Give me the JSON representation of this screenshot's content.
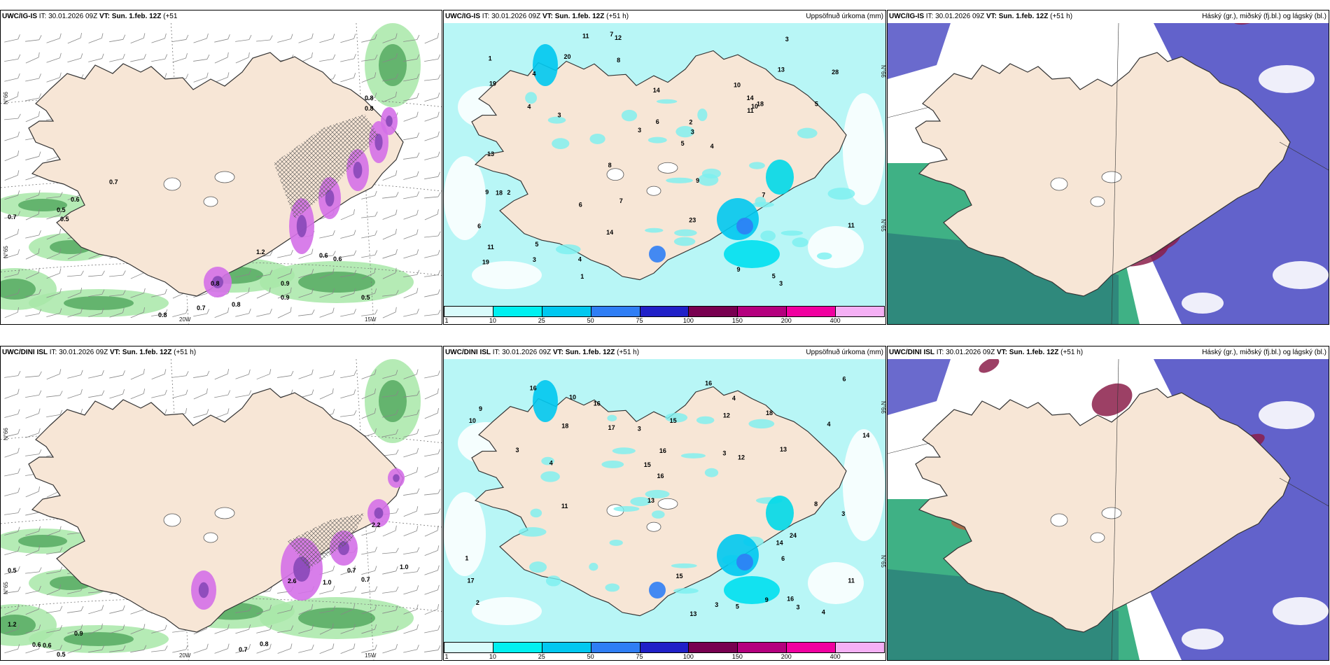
{
  "panels": [
    {
      "id": "p1",
      "title_model": "UWC/IG-IS",
      "title_it": "IT: 30.01.2026 09Z",
      "title_vt": "VT: Sun. 1.feb. 12Z",
      "title_lead": "(+51",
      "title_lead2": "h)",
      "right_title": "",
      "kind": "wind",
      "labels": [
        "0.8",
        "0.8",
        "0.7",
        "0.6",
        "0.7",
        "0.5",
        "0.5",
        "0.8",
        "0.9",
        "0.6",
        "0.6",
        "0.5",
        "0.8",
        "0.7",
        "0.8",
        "0.9",
        "1.2"
      ],
      "coords": [
        "N°66",
        "N°65",
        "20W",
        "15W"
      ]
    },
    {
      "id": "p2",
      "title_model": "UWC/IG-IS",
      "title_it": "IT: 30.01.2026 09Z",
      "title_vt": "VT: Sun. 1.feb. 12Z",
      "title_lead": "(+51 h)",
      "right_title": "Uppsöfnuð úrkoma (mm)",
      "kind": "precip",
      "labels": [
        "1",
        "5",
        "5",
        "4",
        "5",
        "3",
        "4",
        "7",
        "3",
        "14",
        "10",
        "28",
        "3",
        "2",
        "3",
        "3",
        "1",
        "2",
        "3",
        "9",
        "5",
        "6",
        "4",
        "9",
        "10",
        "13",
        "14",
        "11",
        "14",
        "18",
        "18",
        "12",
        "20",
        "13",
        "4",
        "11",
        "19",
        "19",
        "23",
        "11",
        "8",
        "8",
        "7",
        "6",
        "6",
        "7",
        "9",
        "11"
      ],
      "coords": [
        "N°66",
        "N°65"
      ]
    },
    {
      "id": "p3",
      "title_model": "UWC/IG-IS",
      "title_it": "IT: 30.01.2026 09Z",
      "title_vt": "VT: Sun. 1.feb. 12Z",
      "title_lead": "(+51 h)",
      "right_title": "Háský (gr.), miðský (fj.bl.) og lágský (bl.)",
      "kind": "cloud",
      "labels": [],
      "coords": []
    },
    {
      "id": "p4",
      "title_model": "UWC/DINI ISL",
      "title_it": "IT: 30.01.2026 09Z",
      "title_vt": "VT: Sun. 1.feb. 12Z",
      "title_lead": "(+51 h)",
      "right_title": "",
      "kind": "wind",
      "labels": [
        "0.5",
        "1.2",
        "0.9",
        "0.6",
        "0.6",
        "0.5",
        "0.7",
        "0.8",
        "0.7",
        "1.0",
        "0.7",
        "1.0",
        "2.6",
        "2.2"
      ],
      "coords": [
        "N°66",
        "N°65",
        "20W",
        "15W"
      ]
    },
    {
      "id": "p5",
      "title_model": "UWC/DINI ISL",
      "title_it": "IT: 30.01.2026 09Z",
      "title_vt": "VT: Sun. 1.feb. 12Z",
      "title_lead": "(+51 h)",
      "right_title": "Uppsöfnuð úrkoma (mm)",
      "kind": "precip",
      "labels": [
        "3",
        "4",
        "3",
        "3",
        "3",
        "16",
        "15",
        "18",
        "4",
        "4",
        "4",
        "16",
        "11",
        "1",
        "5",
        "6",
        "3",
        "9",
        "10",
        "17",
        "12",
        "16",
        "17",
        "13",
        "18",
        "15",
        "16",
        "13",
        "14",
        "10",
        "8",
        "11",
        "24",
        "16",
        "12",
        "13",
        "14",
        "15",
        "16",
        "2",
        "6",
        "9",
        "3"
      ],
      "coords": [
        "N°66",
        "N°65"
      ]
    },
    {
      "id": "p6",
      "title_model": "UWC/DINI ISL",
      "title_it": "IT: 30.01.2026 09Z",
      "title_vt": "VT: Sun. 1.feb. 12Z",
      "title_lead": "(+51 h)",
      "right_title": "Háský (gr.), miðský (fj.bl.) og lágský (bl.)",
      "kind": "cloud",
      "labels": [],
      "coords": []
    }
  ],
  "colorbar": {
    "ticks": [
      "1",
      "10",
      "25",
      "50",
      "75",
      "100",
      "150",
      "200",
      "400"
    ],
    "colors": [
      "#d9fbfb",
      "#00f0f0",
      "#00c8f0",
      "#2f7ef5",
      "#2020c8",
      "#780050",
      "#b4007e",
      "#f000a0",
      "#f5b0f5"
    ]
  },
  "colors": {
    "land": "#f7e6d6",
    "sea_precip": "#b8f6f6",
    "wind_purple": "#d470e8",
    "wind_green": "#a8e8a8",
    "cloud_blue": "#5a5ac8",
    "cloud_red": "#8b1e4a",
    "cloud_green": "#2aa878"
  }
}
